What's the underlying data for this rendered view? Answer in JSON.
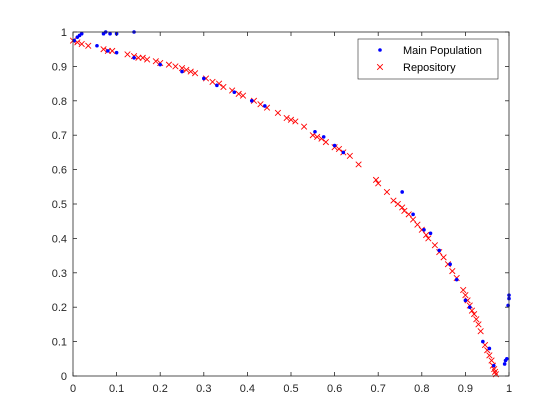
{
  "chart_data": {
    "type": "scatter",
    "title": "",
    "xlabel": "",
    "ylabel": "",
    "xlim": [
      0,
      1
    ],
    "ylim": [
      0,
      1
    ],
    "x_ticks": [
      "0",
      "0.1",
      "0.2",
      "0.3",
      "0.4",
      "0.5",
      "0.6",
      "0.7",
      "0.8",
      "0.9",
      "1"
    ],
    "y_ticks": [
      "0",
      "0.1",
      "0.2",
      "0.3",
      "0.4",
      "0.5",
      "0.6",
      "0.7",
      "0.8",
      "0.9",
      "1"
    ],
    "grid": false,
    "legend_position": "top-right",
    "legend": [
      {
        "label": "Main Population",
        "marker": "dot",
        "color": "#0000ff"
      },
      {
        "label": "Repository",
        "marker": "x",
        "color": "#ff0000"
      }
    ],
    "series": [
      {
        "name": "Main Population",
        "marker": "dot",
        "color": "#0000ff",
        "points": [
          [
            0.003,
            0.975
          ],
          [
            0.01,
            0.985
          ],
          [
            0.015,
            0.99
          ],
          [
            0.02,
            0.995
          ],
          [
            0.07,
            0.995
          ],
          [
            0.075,
            1.0
          ],
          [
            0.085,
            0.995
          ],
          [
            0.1,
            0.995
          ],
          [
            0.14,
            1.0
          ],
          [
            0.055,
            0.96
          ],
          [
            0.08,
            0.945
          ],
          [
            0.1,
            0.94
          ],
          [
            0.14,
            0.925
          ],
          [
            0.2,
            0.905
          ],
          [
            0.25,
            0.885
          ],
          [
            0.3,
            0.865
          ],
          [
            0.33,
            0.845
          ],
          [
            0.37,
            0.825
          ],
          [
            0.41,
            0.8
          ],
          [
            0.44,
            0.785
          ],
          [
            0.555,
            0.71
          ],
          [
            0.575,
            0.695
          ],
          [
            0.6,
            0.67
          ],
          [
            0.62,
            0.65
          ],
          [
            0.755,
            0.535
          ],
          [
            0.78,
            0.47
          ],
          [
            0.805,
            0.425
          ],
          [
            0.82,
            0.415
          ],
          [
            0.84,
            0.365
          ],
          [
            0.865,
            0.325
          ],
          [
            0.88,
            0.28
          ],
          [
            0.9,
            0.22
          ],
          [
            0.91,
            0.2
          ],
          [
            0.94,
            0.1
          ],
          [
            0.955,
            0.08
          ],
          [
            0.965,
            0.03
          ],
          [
            0.99,
            0.035
          ],
          [
            0.992,
            0.045
          ],
          [
            0.995,
            0.05
          ],
          [
            0.998,
            0.205
          ],
          [
            1.0,
            0.225
          ],
          [
            1.0,
            0.235
          ]
        ]
      },
      {
        "name": "Repository",
        "marker": "x",
        "color": "#ff0000",
        "points": [
          [
            0.0,
            0.975
          ],
          [
            0.01,
            0.97
          ],
          [
            0.02,
            0.965
          ],
          [
            0.035,
            0.96
          ],
          [
            0.07,
            0.95
          ],
          [
            0.08,
            0.945
          ],
          [
            0.09,
            0.945
          ],
          [
            0.125,
            0.935
          ],
          [
            0.14,
            0.93
          ],
          [
            0.15,
            0.925
          ],
          [
            0.16,
            0.925
          ],
          [
            0.17,
            0.92
          ],
          [
            0.19,
            0.915
          ],
          [
            0.2,
            0.91
          ],
          [
            0.22,
            0.905
          ],
          [
            0.235,
            0.9
          ],
          [
            0.25,
            0.895
          ],
          [
            0.26,
            0.89
          ],
          [
            0.27,
            0.885
          ],
          [
            0.28,
            0.88
          ],
          [
            0.305,
            0.865
          ],
          [
            0.32,
            0.855
          ],
          [
            0.335,
            0.85
          ],
          [
            0.345,
            0.84
          ],
          [
            0.365,
            0.83
          ],
          [
            0.38,
            0.82
          ],
          [
            0.39,
            0.815
          ],
          [
            0.415,
            0.8
          ],
          [
            0.43,
            0.79
          ],
          [
            0.445,
            0.78
          ],
          [
            0.47,
            0.765
          ],
          [
            0.49,
            0.75
          ],
          [
            0.5,
            0.745
          ],
          [
            0.51,
            0.74
          ],
          [
            0.53,
            0.725
          ],
          [
            0.55,
            0.7
          ],
          [
            0.56,
            0.695
          ],
          [
            0.57,
            0.69
          ],
          [
            0.58,
            0.68
          ],
          [
            0.6,
            0.665
          ],
          [
            0.61,
            0.66
          ],
          [
            0.62,
            0.65
          ],
          [
            0.635,
            0.64
          ],
          [
            0.655,
            0.615
          ],
          [
            0.695,
            0.57
          ],
          [
            0.7,
            0.56
          ],
          [
            0.72,
            0.535
          ],
          [
            0.735,
            0.51
          ],
          [
            0.745,
            0.5
          ],
          [
            0.755,
            0.49
          ],
          [
            0.76,
            0.48
          ],
          [
            0.77,
            0.47
          ],
          [
            0.78,
            0.455
          ],
          [
            0.79,
            0.44
          ],
          [
            0.8,
            0.425
          ],
          [
            0.81,
            0.41
          ],
          [
            0.815,
            0.4
          ],
          [
            0.83,
            0.38
          ],
          [
            0.84,
            0.36
          ],
          [
            0.85,
            0.345
          ],
          [
            0.86,
            0.325
          ],
          [
            0.87,
            0.305
          ],
          [
            0.88,
            0.285
          ],
          [
            0.895,
            0.25
          ],
          [
            0.9,
            0.235
          ],
          [
            0.905,
            0.22
          ],
          [
            0.91,
            0.205
          ],
          [
            0.915,
            0.19
          ],
          [
            0.92,
            0.18
          ],
          [
            0.925,
            0.165
          ],
          [
            0.93,
            0.15
          ],
          [
            0.935,
            0.13
          ],
          [
            0.945,
            0.09
          ],
          [
            0.95,
            0.075
          ],
          [
            0.955,
            0.06
          ],
          [
            0.96,
            0.045
          ],
          [
            0.963,
            0.03
          ],
          [
            0.966,
            0.02
          ],
          [
            0.968,
            0.012
          ],
          [
            0.97,
            0.005
          ]
        ]
      }
    ]
  }
}
